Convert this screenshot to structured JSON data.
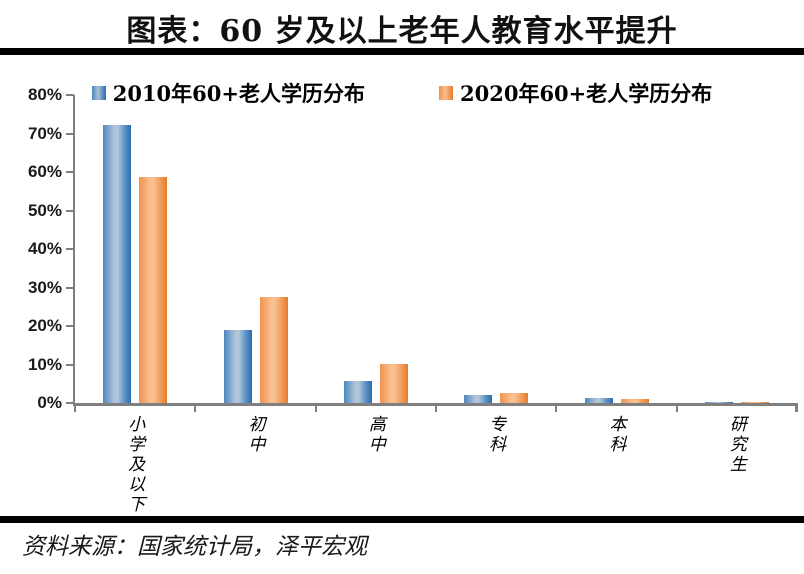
{
  "title": "图表：60 岁及以上老年人教育水平提升",
  "source": "资料来源：国家统计局，泽平宏观",
  "colors": {
    "axis": "#7f7f7f",
    "divider": "#000000",
    "series_2010": "#4d87c0",
    "series_2020": "#f0924d"
  },
  "chart_data": {
    "type": "bar",
    "title": "图表：60 岁及以上老年人教育水平提升",
    "categories": [
      "小学及以下",
      "初中",
      "高中",
      "专科",
      "本科",
      "研究生"
    ],
    "series": [
      {
        "name": "2010年60+老人学历分布",
        "color": "#4d87c0",
        "values": [
          72.2,
          19,
          5.8,
          2,
          1.2,
          0.1
        ]
      },
      {
        "name": "2020年60+老人学历分布",
        "color": "#f0924d",
        "values": [
          58.6,
          27.6,
          10,
          2.5,
          1.1,
          0.2
        ]
      }
    ],
    "xlabel": "",
    "ylabel": "",
    "ylim": [
      0,
      80
    ],
    "ytick_step": 10,
    "ytick_labels": [
      "0%",
      "10%",
      "20%",
      "30%",
      "40%",
      "50%",
      "60%",
      "70%",
      "80%"
    ],
    "legend_position": "top",
    "grid": false
  }
}
